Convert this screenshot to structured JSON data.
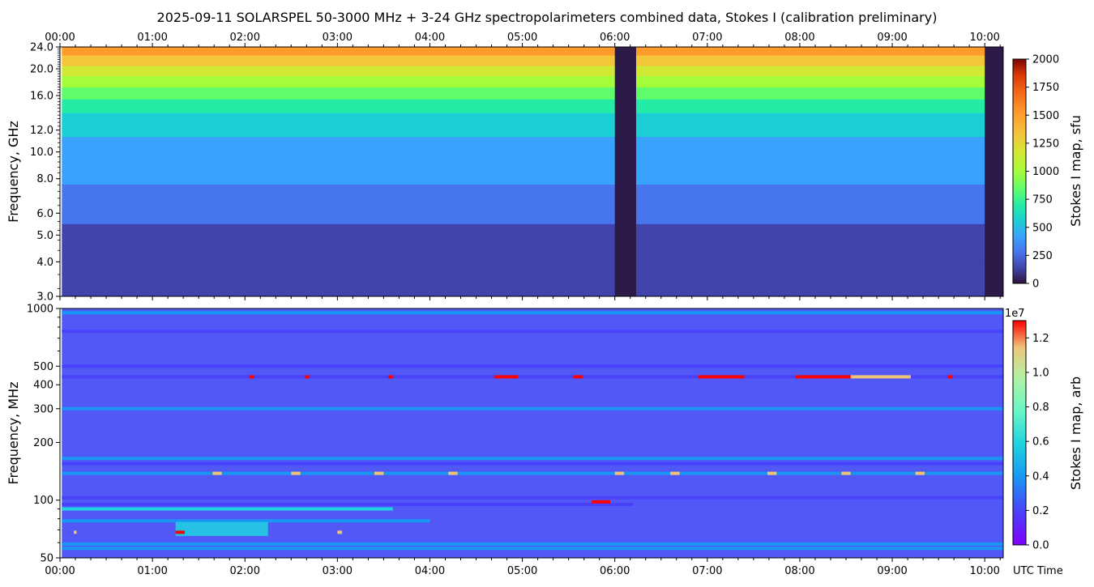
{
  "title": "2025-09-11  SOLARSPEL  50-3000 MHz  +  3-24 GHz  spectropolarimeters combined data,  Stokes I  (calibration preliminary)",
  "x_axis": {
    "ticks": [
      "00:00",
      "01:00",
      "02:00",
      "03:00",
      "04:00",
      "05:00",
      "06:00",
      "07:00",
      "08:00",
      "09:00",
      "10:00"
    ],
    "label": "UTC Time"
  },
  "chart_data": [
    {
      "type": "heatmap",
      "name": "upper-panel",
      "ylabel": "Frequency, GHz",
      "y_scale": "log",
      "ylim": [
        3.0,
        24.0
      ],
      "y_ticks": [
        "3.0",
        "4.0",
        "5.0",
        "6.0",
        "8.0",
        "10.0",
        "12.0",
        "16.0",
        "20.0",
        "24.0"
      ],
      "y_tick_values": [
        3,
        4,
        5,
        6,
        8,
        10,
        12,
        16,
        20,
        24
      ],
      "xlim_hours": [
        0.0,
        10.2
      ],
      "data_start_hours": 0.02,
      "data_end_hours": 10.2,
      "gaps_hours": [
        [
          6.0,
          6.23
        ],
        [
          10.0,
          10.2
        ]
      ],
      "colorbar": {
        "label": "Stokes I map, sfu",
        "range": [
          0,
          2000
        ],
        "ticks": [
          "0",
          "250",
          "500",
          "750",
          "1000",
          "1250",
          "1500",
          "1750",
          "2000"
        ],
        "colormap": "turbo"
      },
      "band_profile": [
        {
          "freq_ghz": 3.0,
          "value": 180
        },
        {
          "freq_ghz": 5.5,
          "value": 230
        },
        {
          "freq_ghz": 6.5,
          "value": 320
        },
        {
          "freq_ghz": 9.0,
          "value": 440
        },
        {
          "freq_ghz": 11.0,
          "value": 520
        },
        {
          "freq_ghz": 13.5,
          "value": 640
        },
        {
          "freq_ghz": 16.0,
          "value": 880
        },
        {
          "freq_ghz": 18.5,
          "value": 1120
        },
        {
          "freq_ghz": 21.0,
          "value": 1350
        },
        {
          "freq_ghz": 24.0,
          "value": 1600
        }
      ]
    },
    {
      "type": "heatmap",
      "name": "lower-panel",
      "ylabel": "Frequency, MHz",
      "y_scale": "log",
      "ylim": [
        50,
        1000
      ],
      "y_ticks": [
        "50",
        "100",
        "200",
        "300",
        "400",
        "500",
        "1000"
      ],
      "y_tick_values": [
        50,
        100,
        200,
        300,
        400,
        500,
        1000
      ],
      "xlim_hours": [
        0.0,
        10.2
      ],
      "colorbar": {
        "label": "Stokes I map, arb",
        "offset_label": "1e7",
        "range": [
          0.0,
          1.3
        ],
        "ticks": [
          "0.0",
          "0.2",
          "0.4",
          "0.6",
          "0.8",
          "1.0",
          "1.2"
        ],
        "colormap": "rainbow"
      },
      "horizontal_features": [
        {
          "freq_mhz": 56,
          "start_h": 0.02,
          "end_h": 10.2,
          "value": 0.42
        },
        {
          "freq_mhz": 59,
          "start_h": 0.02,
          "end_h": 10.2,
          "value": 0.3
        },
        {
          "freq_mhz": 78,
          "start_h": 0.02,
          "end_h": 4.0,
          "value": 0.35
        },
        {
          "freq_mhz": 90,
          "start_h": 0.02,
          "end_h": 3.6,
          "value": 0.48
        },
        {
          "freq_mhz": 95,
          "start_h": 0.02,
          "end_h": 6.2,
          "value": 0.12
        },
        {
          "freq_mhz": 103,
          "start_h": 0.02,
          "end_h": 10.2,
          "value": 0.1
        },
        {
          "freq_mhz": 138,
          "start_h": 0.02,
          "end_h": 10.2,
          "value": 0.3
        },
        {
          "freq_mhz": 155,
          "start_h": 0.02,
          "end_h": 10.2,
          "value": 0.25
        },
        {
          "freq_mhz": 165,
          "start_h": 0.02,
          "end_h": 10.2,
          "value": 0.38
        },
        {
          "freq_mhz": 300,
          "start_h": 0.02,
          "end_h": 10.2,
          "value": 0.28
        },
        {
          "freq_mhz": 440,
          "start_h": 0.02,
          "end_h": 10.2,
          "value": 0.24
        },
        {
          "freq_mhz": 500,
          "start_h": 0.02,
          "end_h": 10.2,
          "value": 0.2
        },
        {
          "freq_mhz": 760,
          "start_h": 0.02,
          "end_h": 10.2,
          "value": 0.18
        },
        {
          "freq_mhz": 950,
          "start_h": 0.02,
          "end_h": 10.2,
          "value": 0.28
        }
      ],
      "hot_spots": [
        {
          "freq_mhz": 440,
          "start_h": 4.7,
          "end_h": 4.95,
          "value": 1.3
        },
        {
          "freq_mhz": 440,
          "start_h": 5.55,
          "end_h": 5.65,
          "value": 1.3
        },
        {
          "freq_mhz": 440,
          "start_h": 6.9,
          "end_h": 7.4,
          "value": 1.3
        },
        {
          "freq_mhz": 440,
          "start_h": 7.95,
          "end_h": 8.55,
          "value": 1.3
        },
        {
          "freq_mhz": 440,
          "start_h": 8.55,
          "end_h": 9.2,
          "value": 1.2
        },
        {
          "freq_mhz": 440,
          "start_h": 2.05,
          "end_h": 2.1,
          "value": 1.25
        },
        {
          "freq_mhz": 440,
          "start_h": 2.65,
          "end_h": 2.7,
          "value": 1.25
        },
        {
          "freq_mhz": 440,
          "start_h": 3.55,
          "end_h": 3.6,
          "value": 1.25
        },
        {
          "freq_mhz": 440,
          "start_h": 9.6,
          "end_h": 9.65,
          "value": 1.25
        },
        {
          "freq_mhz": 138,
          "start_h": 1.65,
          "end_h": 1.75,
          "value": 1.1
        },
        {
          "freq_mhz": 138,
          "start_h": 2.5,
          "end_h": 2.6,
          "value": 1.1
        },
        {
          "freq_mhz": 138,
          "start_h": 3.4,
          "end_h": 3.5,
          "value": 1.1
        },
        {
          "freq_mhz": 138,
          "start_h": 4.2,
          "end_h": 4.3,
          "value": 1.1
        },
        {
          "freq_mhz": 138,
          "start_h": 6.0,
          "end_h": 6.1,
          "value": 1.1
        },
        {
          "freq_mhz": 138,
          "start_h": 6.6,
          "end_h": 6.7,
          "value": 1.1
        },
        {
          "freq_mhz": 138,
          "start_h": 7.65,
          "end_h": 7.75,
          "value": 1.1
        },
        {
          "freq_mhz": 138,
          "start_h": 8.45,
          "end_h": 8.55,
          "value": 1.1
        },
        {
          "freq_mhz": 138,
          "start_h": 9.25,
          "end_h": 9.35,
          "value": 1.1
        },
        {
          "freq_mhz": 98,
          "start_h": 5.75,
          "end_h": 5.95,
          "value": 1.3
        },
        {
          "freq_mhz": 68,
          "start_h": 1.25,
          "end_h": 1.35,
          "value": 1.3
        },
        {
          "freq_mhz": 68,
          "start_h": 3.0,
          "end_h": 3.05,
          "value": 1.2
        },
        {
          "freq_mhz": 68,
          "start_h": 0.15,
          "end_h": 0.18,
          "value": 1.2
        }
      ],
      "burst_patches": [
        {
          "start_h": 1.25,
          "end_h": 2.25,
          "freq_low_mhz": 65,
          "freq_high_mhz": 77,
          "value": 0.6
        }
      ]
    }
  ]
}
